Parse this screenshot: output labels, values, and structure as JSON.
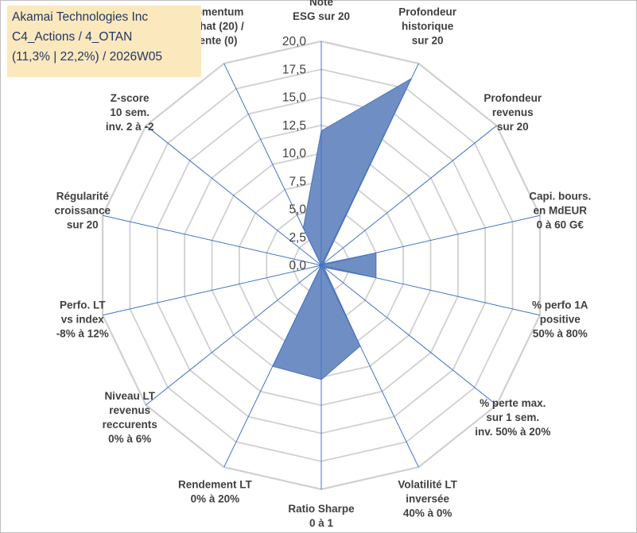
{
  "title_box": {
    "line1": "Akamai Technologies Inc",
    "line2": "C4_Actions / 4_OTAN",
    "line3": "(11,3% | 22,2%) / 2026W05"
  },
  "colors": {
    "fill": "#6f8fc4",
    "stroke": "#4f74b5",
    "spoke": "#4472c4",
    "grid": "#d0d0d0",
    "title_bg": "#fce8bd",
    "title_text": "#203864"
  },
  "chart_data": {
    "type": "radar",
    "rmin": 0,
    "rmax": 20,
    "grid_step": 2.5,
    "tick_labels": [
      "0,0",
      "2,5",
      "5,0",
      "7,5",
      "10,0",
      "12,5",
      "15,0",
      "17,5",
      "20,0"
    ],
    "axes": [
      [
        "Note",
        "ESG sur 20"
      ],
      [
        "Profondeur",
        "historique",
        "sur 20"
      ],
      [
        "Profondeur",
        "revenus",
        "sur 20"
      ],
      [
        "Capi. bours.",
        "en MdEUR",
        "0 à 60 G€"
      ],
      [
        "% perfo 1A",
        "positive",
        "50% à 80%"
      ],
      [
        "% perte max.",
        "sur 1 sem.",
        "inv. 50% à 20%"
      ],
      [
        "Volatilité LT",
        "inversée",
        "40% à 0%"
      ],
      [
        "Ratio Sharpe",
        "0 à 1"
      ],
      [
        "Rendement LT",
        "0% à 20%"
      ],
      [
        "Niveau LT",
        "revenus",
        "reccurents",
        "0% à 6%"
      ],
      [
        "Perfo. LT",
        "vs index",
        "-8% à 12%"
      ],
      [
        "Régularité",
        "croissance",
        "sur 20"
      ],
      [
        "Z-score",
        "10 sem.",
        "inv. 2 à -2"
      ],
      [
        "Momentum",
        "Achat (20) /",
        "Vente (0)"
      ]
    ],
    "series": [
      {
        "values": [
          12.0,
          18.5,
          0.2,
          5.0,
          5.0,
          0.3,
          8.0,
          10.2,
          10.0,
          0.0,
          0.0,
          0.0,
          0.0,
          3.7
        ]
      }
    ]
  }
}
